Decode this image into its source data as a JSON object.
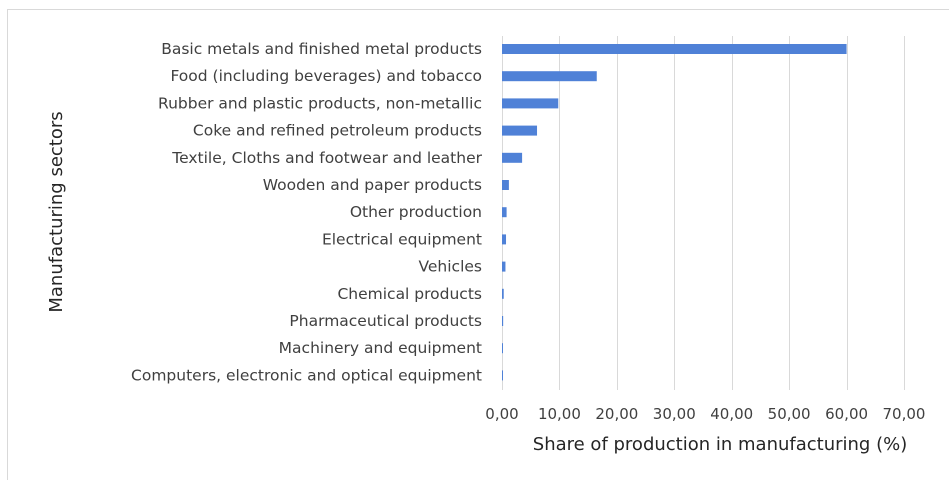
{
  "chart_data": {
    "type": "bar",
    "orientation": "horizontal",
    "categories": [
      "Basic metals and finished metal products",
      "Food (including beverages) and tobacco",
      "Rubber and plastic products, non-metallic",
      "Coke and refined petroleum products",
      "Textile, Cloths and footwear and leather",
      "Wooden and paper products",
      "Other production",
      "Electrical equipment",
      "Vehicles",
      "Chemical products",
      "Pharmaceutical products",
      "Machinery and equipment",
      "Computers, electronic and optical equipment"
    ],
    "values": [
      60.0,
      16.5,
      9.8,
      6.1,
      3.5,
      1.2,
      0.8,
      0.7,
      0.6,
      0.3,
      0.2,
      0.1,
      0.05
    ],
    "xlabel": "Share of production in manufacturing (%)",
    "ylabel": "Manufacturing sectors",
    "xlim": [
      0,
      70
    ],
    "x_ticks": [
      "0,00",
      "10,00",
      "20,00",
      "30,00",
      "40,00",
      "50,00",
      "60,00",
      "70,00"
    ],
    "grid": true,
    "legend": "none",
    "bar_color": "#4f81d7"
  }
}
